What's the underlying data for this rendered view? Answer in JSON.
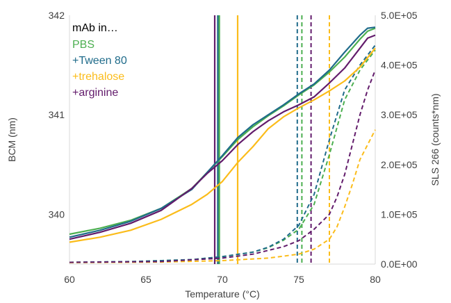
{
  "chart_data": {
    "type": "line",
    "xlabel": "Temperature (°C)",
    "ylabel": "BCM (nm)",
    "y2label": "SLS 266 (counts*nm)",
    "xlim": [
      60,
      80
    ],
    "ylim": [
      339.5,
      342
    ],
    "y2lim": [
      0,
      500000
    ],
    "x_ticks": [
      "60",
      "65",
      "70",
      "75",
      "80"
    ],
    "y_ticks": [
      "340",
      "341",
      "342"
    ],
    "y2_ticks": [
      "0.0E+00",
      "1.0E+05",
      "2.0E+05",
      "3.0E+05",
      "4.0E+05",
      "5.0E+05"
    ],
    "grid": false,
    "legend_title": "mAb in…",
    "legend_position": "top-left",
    "series": [
      {
        "name": "PBS",
        "color": "#4caf50",
        "bcm": {
          "x": [
            60,
            62,
            64,
            66,
            68,
            69,
            70,
            71,
            72,
            73,
            74,
            75,
            76,
            77,
            78,
            79,
            79.5,
            80
          ],
          "y": [
            339.8,
            339.86,
            339.94,
            340.06,
            340.26,
            340.42,
            340.58,
            340.75,
            340.88,
            340.99,
            341.09,
            341.2,
            341.3,
            341.43,
            341.58,
            341.76,
            341.84,
            341.87
          ]
        },
        "sls": {
          "x": [
            60,
            64,
            68,
            70,
            72,
            73,
            74,
            75,
            76,
            77,
            78,
            79,
            79.5,
            80
          ],
          "y": [
            3500,
            5000,
            9000,
            15000,
            24000,
            33000,
            48000,
            70000,
            120000,
            220000,
            330000,
            390000,
            410000,
            430000
          ]
        },
        "tm": 69.8
      },
      {
        "name": "+Tween 80",
        "color": "#1f6b8a",
        "bcm": {
          "x": [
            60,
            62,
            64,
            66,
            68,
            69,
            70,
            71,
            72,
            73,
            74,
            75,
            76,
            77,
            78,
            79,
            79.5,
            80
          ],
          "y": [
            339.77,
            339.84,
            339.93,
            340.06,
            340.25,
            340.42,
            340.59,
            340.77,
            340.9,
            341.0,
            341.1,
            341.21,
            341.31,
            341.45,
            341.63,
            341.8,
            341.87,
            341.88
          ]
        },
        "sls": {
          "x": [
            60,
            64,
            68,
            70,
            72,
            73,
            74,
            75,
            76,
            77,
            78,
            79,
            79.5,
            80
          ],
          "y": [
            3500,
            5000,
            9000,
            15000,
            24000,
            34000,
            50000,
            78000,
            140000,
            250000,
            350000,
            400000,
            420000,
            440000
          ]
        },
        "tm": 69.7
      },
      {
        "name": "+trehalose",
        "color": "#fbbc1a",
        "bcm": {
          "x": [
            60,
            62,
            64,
            66,
            68,
            69,
            70,
            71,
            72,
            73,
            74,
            75,
            76,
            77,
            78,
            79,
            80
          ],
          "y": [
            339.72,
            339.77,
            339.84,
            339.95,
            340.1,
            340.2,
            340.33,
            340.52,
            340.68,
            340.86,
            340.98,
            341.07,
            341.15,
            341.24,
            341.34,
            341.48,
            341.67
          ]
        },
        "sls": {
          "x": [
            60,
            66,
            70,
            73,
            75,
            76,
            77,
            77.5,
            78,
            78.5,
            79,
            79.5,
            80
          ],
          "y": [
            3000,
            4000,
            7000,
            12000,
            20000,
            30000,
            50000,
            75000,
            115000,
            160000,
            210000,
            240000,
            270000
          ]
        },
        "tm": 71.0
      },
      {
        "name": "+arginine",
        "color": "#621b6b",
        "bcm": {
          "x": [
            60,
            62,
            64,
            66,
            68,
            69,
            70,
            71,
            72,
            73,
            74,
            75,
            76,
            77,
            78,
            79,
            79.5,
            80
          ],
          "y": [
            339.75,
            339.82,
            339.91,
            340.04,
            340.26,
            340.41,
            340.54,
            340.7,
            340.83,
            340.94,
            341.03,
            341.1,
            341.18,
            341.32,
            341.47,
            341.67,
            341.77,
            341.8
          ]
        },
        "sls": {
          "x": [
            60,
            66,
            70,
            72,
            74,
            75,
            76,
            77,
            77.5,
            78,
            78.5,
            79,
            79.5,
            80
          ],
          "y": [
            3500,
            5000,
            12000,
            20000,
            35000,
            47000,
            70000,
            100000,
            135000,
            180000,
            240000,
            300000,
            350000,
            390000
          ]
        },
        "tm": 69.5
      }
    ],
    "onset_lines": [
      {
        "series": "PBS",
        "x": 75.2
      },
      {
        "series": "+Tween 80",
        "x": 74.9
      },
      {
        "series": "+trehalose",
        "x": 77.0
      },
      {
        "series": "+arginine",
        "x": 75.8
      }
    ]
  }
}
